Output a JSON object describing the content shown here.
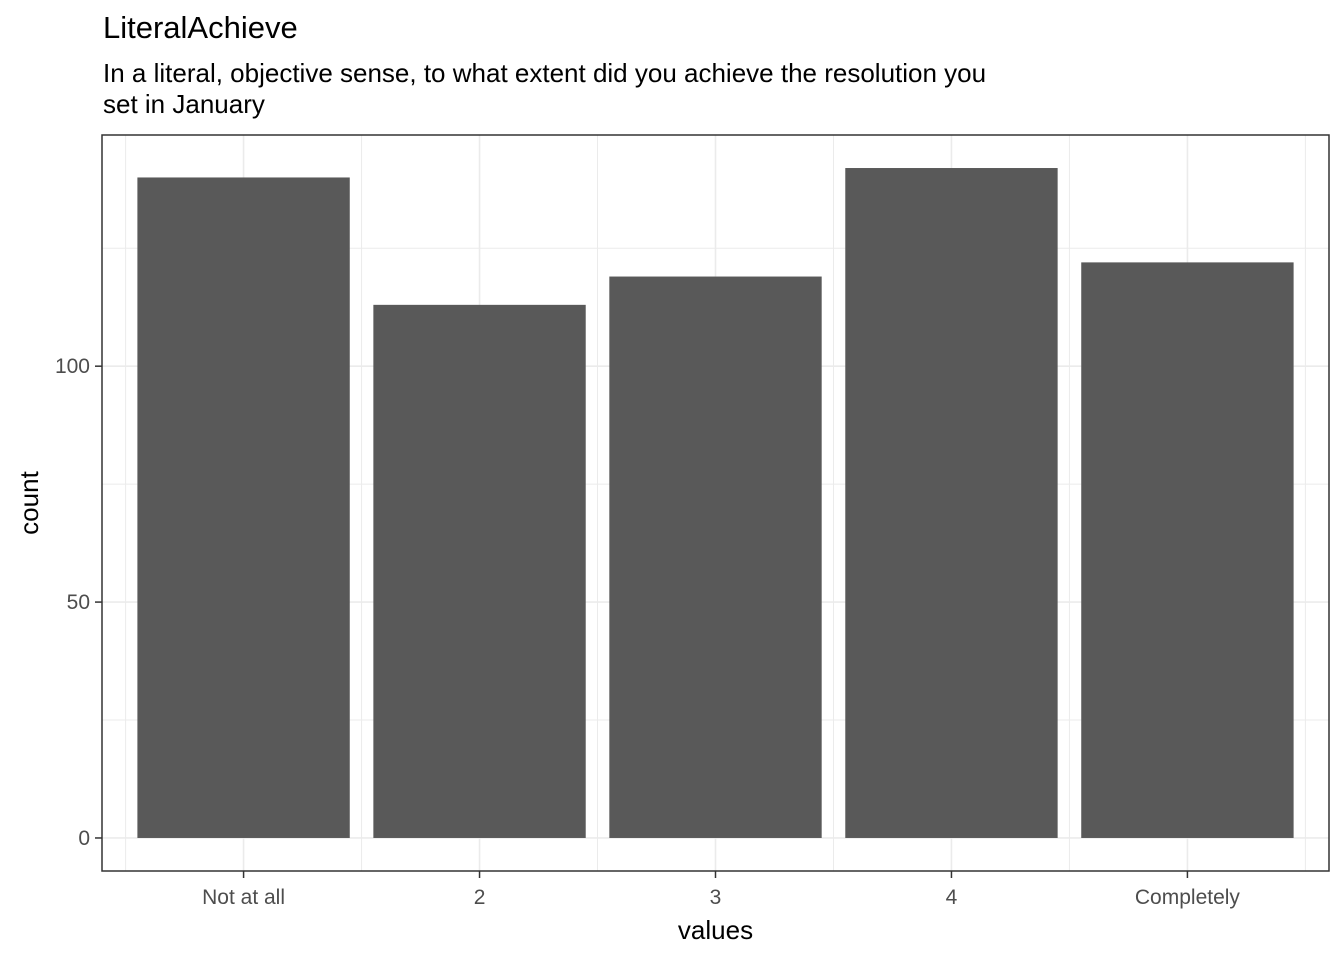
{
  "chart_data": {
    "type": "bar",
    "title": "LiteralAchieve",
    "subtitle": "In a literal, objective sense, to what extent did you achieve the resolution you set in January",
    "xlabel": "values",
    "ylabel": "count",
    "categories": [
      "Not at all",
      "2",
      "3",
      "4",
      "Completely"
    ],
    "values": [
      140,
      113,
      119,
      142,
      122
    ],
    "ylim": [
      -7,
      149
    ],
    "yticks": [
      0,
      50,
      100
    ],
    "grid": true,
    "bar_color": "#595959",
    "grid_color": "#ebebeb",
    "axis_text_color": "#4d4d4d",
    "panel_border_color": "#333333"
  }
}
